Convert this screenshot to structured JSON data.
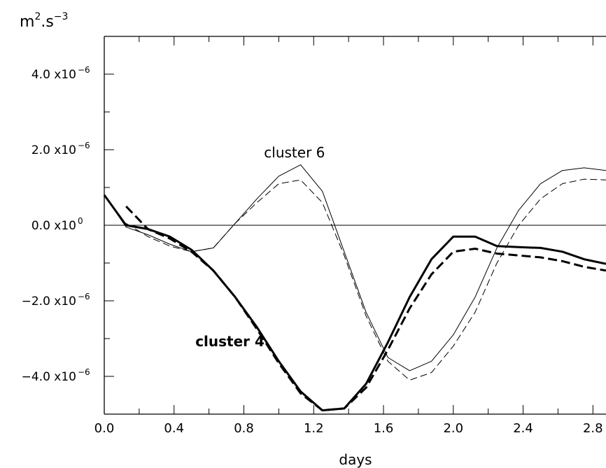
{
  "chart_data": {
    "type": "line",
    "xlabel": "days",
    "ylabel": "m2.s-3",
    "ylabel_parts": {
      "base": "m",
      "sup1": "2",
      "mid": ".s",
      "sup2": "−3"
    },
    "xlim": [
      0,
      2.875
    ],
    "ylim": [
      -5e-06,
      5e-06
    ],
    "x_ticks": [
      "0.0",
      "0.4",
      "0.8",
      "1.2",
      "1.6",
      "2.0",
      "2.4",
      "2.8"
    ],
    "y_ticks": [
      {
        "value": 4e-06,
        "mantissa": "4.0 x10",
        "exp": "−6"
      },
      {
        "value": 2e-06,
        "mantissa": "2.0 x10",
        "exp": "−6"
      },
      {
        "value": 0,
        "mantissa": "0.0 x10",
        "exp": "0"
      },
      {
        "value": -2e-06,
        "mantissa": "−2.0 x10",
        "exp": "−6"
      },
      {
        "value": -4e-06,
        "mantissa": "−4.0 x10",
        "exp": "−6"
      }
    ],
    "annotations": [
      {
        "text": "cluster 6",
        "x": 1.09,
        "y": 1.8e-06,
        "bold": false
      },
      {
        "text": "cluster 4",
        "x": 0.72,
        "y": -3.2e-06,
        "bold": true
      }
    ],
    "series": [
      {
        "color": "#000000",
        "weight": "thin",
        "style": "solid",
        "points": [
          [
            0.0,
            8e-07
          ],
          [
            0.125,
            -5e-08
          ],
          [
            0.25,
            -2.5e-07
          ],
          [
            0.375,
            -5e-07
          ],
          [
            0.5,
            -7e-07
          ],
          [
            0.625,
            -6e-07
          ],
          [
            0.75,
            5e-08
          ],
          [
            0.875,
            7e-07
          ],
          [
            1.0,
            1.3e-06
          ],
          [
            1.125,
            1.6e-06
          ],
          [
            1.25,
            9e-07
          ],
          [
            1.375,
            -7e-07
          ],
          [
            1.5,
            -2.3e-06
          ],
          [
            1.625,
            -3.5e-06
          ],
          [
            1.75,
            -3.85e-06
          ],
          [
            1.875,
            -3.6e-06
          ],
          [
            2.0,
            -2.9e-06
          ],
          [
            2.125,
            -1.9e-06
          ],
          [
            2.25,
            -6e-07
          ],
          [
            2.375,
            4e-07
          ],
          [
            2.5,
            1.1e-06
          ],
          [
            2.625,
            1.45e-06
          ],
          [
            2.75,
            1.52e-06
          ],
          [
            2.875,
            1.45e-06
          ]
        ]
      },
      {
        "color": "#000000",
        "weight": "thin",
        "style": "dashed",
        "points": [
          [
            0.125,
            5e-08
          ],
          [
            0.25,
            -3e-07
          ],
          [
            0.375,
            -5.5e-07
          ],
          [
            0.5,
            -7e-07
          ],
          [
            0.625,
            -6e-07
          ],
          [
            0.75,
            5e-08
          ],
          [
            0.875,
            6e-07
          ],
          [
            1.0,
            1.1e-06
          ],
          [
            1.125,
            1.2e-06
          ],
          [
            1.25,
            6e-07
          ],
          [
            1.375,
            -8e-07
          ],
          [
            1.5,
            -2.4e-06
          ],
          [
            1.625,
            -3.6e-06
          ],
          [
            1.75,
            -4.1e-06
          ],
          [
            1.875,
            -3.9e-06
          ],
          [
            2.0,
            -3.2e-06
          ],
          [
            2.125,
            -2.3e-06
          ],
          [
            2.25,
            -1e-06
          ],
          [
            2.375,
            0.0
          ],
          [
            2.5,
            7e-07
          ],
          [
            2.625,
            1.1e-06
          ],
          [
            2.75,
            1.22e-06
          ],
          [
            2.875,
            1.2e-06
          ]
        ]
      },
      {
        "color": "#000000",
        "weight": "thick",
        "style": "solid",
        "points": [
          [
            0.0,
            8e-07
          ],
          [
            0.125,
            0.0
          ],
          [
            0.25,
            -1e-07
          ],
          [
            0.375,
            -3e-07
          ],
          [
            0.5,
            -6.5e-07
          ],
          [
            0.625,
            -1.2e-06
          ],
          [
            0.75,
            -1.9e-06
          ],
          [
            0.875,
            -2.7e-06
          ],
          [
            1.0,
            -3.6e-06
          ],
          [
            1.125,
            -4.4e-06
          ],
          [
            1.25,
            -4.9e-06
          ],
          [
            1.375,
            -4.85e-06
          ],
          [
            1.5,
            -4.2e-06
          ],
          [
            1.625,
            -3.1e-06
          ],
          [
            1.75,
            -1.9e-06
          ],
          [
            1.875,
            -9e-07
          ],
          [
            2.0,
            -3e-07
          ],
          [
            2.125,
            -3e-07
          ],
          [
            2.25,
            -5.5e-07
          ],
          [
            2.375,
            -5.8e-07
          ],
          [
            2.5,
            -6e-07
          ],
          [
            2.625,
            -7e-07
          ],
          [
            2.75,
            -9e-07
          ],
          [
            2.875,
            -1.02e-06
          ]
        ]
      },
      {
        "color": "#000000",
        "weight": "thick",
        "style": "dashed",
        "points": [
          [
            0.125,
            5e-07
          ],
          [
            0.25,
            -1e-07
          ],
          [
            0.375,
            -3.5e-07
          ],
          [
            0.5,
            -7e-07
          ],
          [
            0.625,
            -1.2e-06
          ],
          [
            0.75,
            -1.9e-06
          ],
          [
            0.875,
            -2.75e-06
          ],
          [
            1.0,
            -3.65e-06
          ],
          [
            1.125,
            -4.45e-06
          ],
          [
            1.25,
            -4.9e-06
          ],
          [
            1.375,
            -4.85e-06
          ],
          [
            1.5,
            -4.3e-06
          ],
          [
            1.625,
            -3.3e-06
          ],
          [
            1.75,
            -2.2e-06
          ],
          [
            1.875,
            -1.3e-06
          ],
          [
            2.0,
            -7e-07
          ],
          [
            2.125,
            -6.2e-07
          ],
          [
            2.25,
            -7.5e-07
          ],
          [
            2.375,
            -8e-07
          ],
          [
            2.5,
            -8.5e-07
          ],
          [
            2.625,
            -9.5e-07
          ],
          [
            2.75,
            -1.1e-06
          ],
          [
            2.875,
            -1.2e-06
          ]
        ]
      }
    ]
  }
}
